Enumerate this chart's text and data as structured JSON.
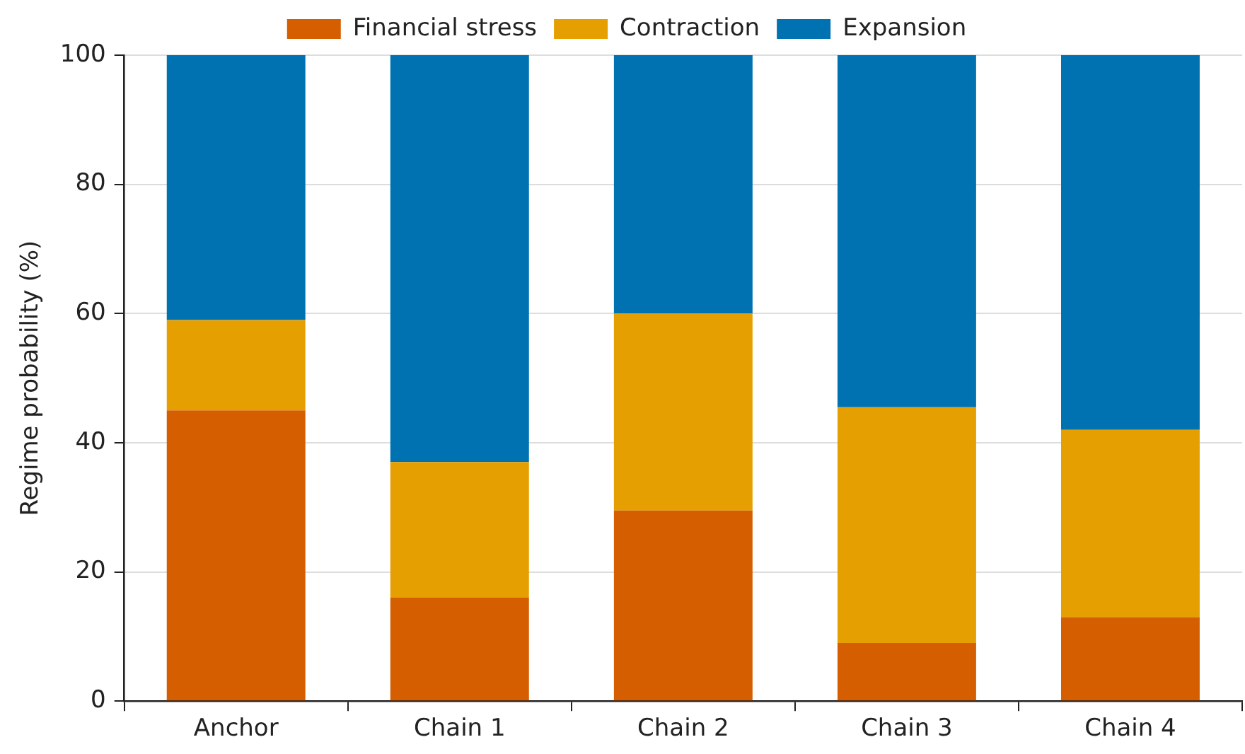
{
  "chart_data": {
    "type": "bar",
    "stacked": true,
    "ylabel": "Regime probability (%)",
    "categories": [
      "Anchor",
      "Chain 1",
      "Chain 2",
      "Chain 3",
      "Chain 4"
    ],
    "series": [
      {
        "name": "Financial stress",
        "color": "#d55e00",
        "values": [
          45,
          16,
          29.5,
          9,
          13
        ]
      },
      {
        "name": "Contraction",
        "color": "#e69f00",
        "values": [
          14,
          21,
          30.5,
          36.5,
          29
        ]
      },
      {
        "name": "Expansion",
        "color": "#0072b2",
        "values": [
          41,
          63,
          40,
          54.5,
          58
        ]
      }
    ],
    "ylim": [
      0,
      100
    ],
    "yticks": [
      0,
      20,
      40,
      60,
      80,
      100
    ],
    "grid": "y",
    "legend": "top"
  }
}
